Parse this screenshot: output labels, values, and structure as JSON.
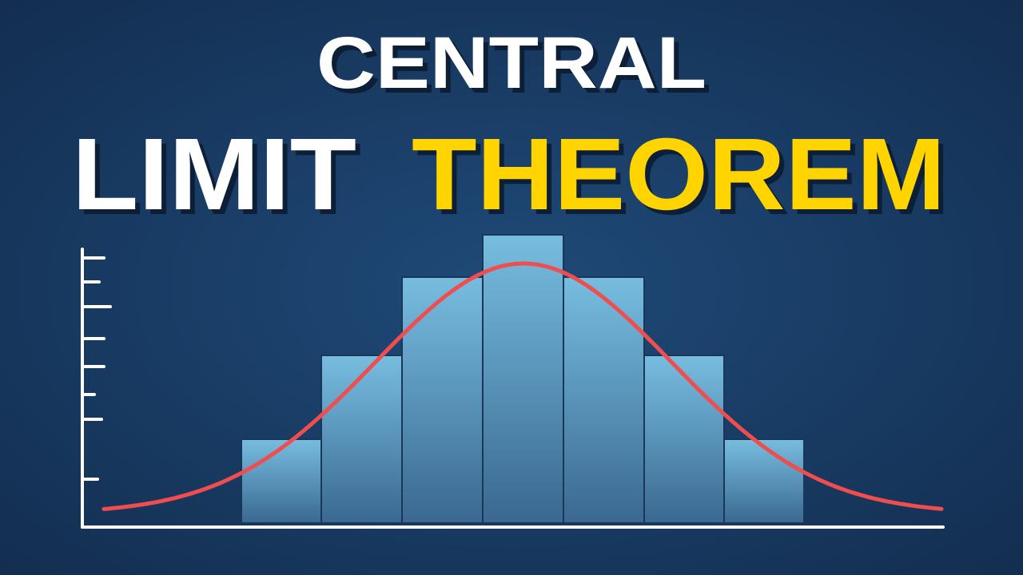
{
  "title": {
    "top": "CENTRAL",
    "bottom_left": "LIMIT",
    "bottom_right": "THEOREM"
  }
}
